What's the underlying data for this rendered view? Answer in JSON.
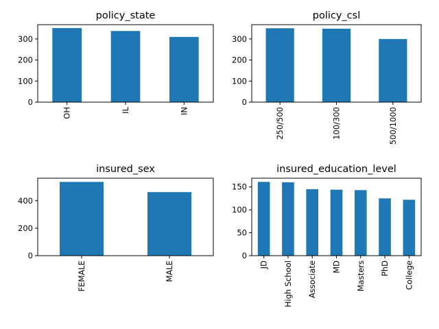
{
  "chart_data": [
    {
      "type": "bar",
      "title": "policy_state",
      "categories": [
        "OH",
        "IL",
        "IN"
      ],
      "values": [
        352,
        338,
        310
      ],
      "ylim": [
        0,
        368
      ],
      "yticks": [
        0,
        100,
        200,
        300
      ],
      "color": "#1f77b4",
      "grid": false
    },
    {
      "type": "bar",
      "title": "policy_csl",
      "categories": [
        "250/500",
        "100/300",
        "500/1000"
      ],
      "values": [
        351,
        349,
        300
      ],
      "ylim": [
        0,
        368
      ],
      "yticks": [
        0,
        100,
        200,
        300
      ],
      "color": "#1f77b4",
      "grid": false
    },
    {
      "type": "bar",
      "title": "insured_sex",
      "categories": [
        "FEMALE",
        "MALE"
      ],
      "values": [
        537,
        463
      ],
      "ylim": [
        0,
        564
      ],
      "yticks": [
        0,
        200,
        400
      ],
      "color": "#1f77b4",
      "grid": false
    },
    {
      "type": "bar",
      "title": "insured_education_level",
      "categories": [
        "JD",
        "High School",
        "Associate",
        "MD",
        "Masters",
        "PhD",
        "College"
      ],
      "values": [
        161,
        160,
        145,
        144,
        143,
        125,
        122
      ],
      "ylim": [
        0,
        169
      ],
      "yticks": [
        0,
        50,
        100,
        150
      ],
      "color": "#1f77b4",
      "grid": false
    }
  ]
}
